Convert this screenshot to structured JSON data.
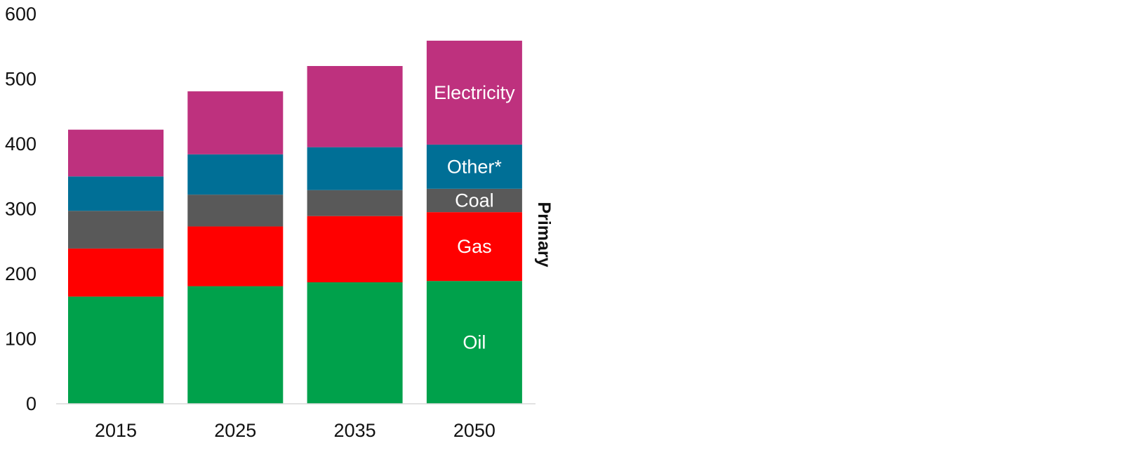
{
  "chart_data": {
    "type": "bar",
    "stacked": true,
    "title": "",
    "xlabel": "",
    "ylabel": "",
    "side_label": "Primary",
    "categories": [
      "2015",
      "2025",
      "2035",
      "2050"
    ],
    "ylim": [
      0,
      600
    ],
    "yticks": [
      "0",
      "100",
      "200",
      "300",
      "400",
      "500",
      "600"
    ],
    "grid": false,
    "series": [
      {
        "name": "Oil",
        "color": "#00A14B",
        "values": [
          165,
          181,
          187,
          189
        ]
      },
      {
        "name": "Gas",
        "color": "#FF0000",
        "values": [
          74,
          92,
          102,
          106
        ]
      },
      {
        "name": "Coal",
        "color": "#595959",
        "values": [
          58,
          49,
          40,
          36
        ]
      },
      {
        "name": "Other*",
        "color": "#006F96",
        "values": [
          53,
          62,
          66,
          68
        ]
      },
      {
        "name": "Electricity",
        "color": "#BE317E",
        "values": [
          72,
          97,
          125,
          160
        ]
      }
    ],
    "label_on_category": "2050"
  }
}
